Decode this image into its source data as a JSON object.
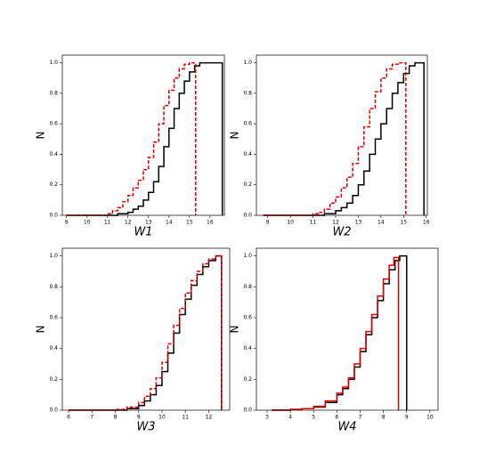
{
  "chart_data": [
    {
      "type": "step",
      "xlabel": "W1",
      "ylabel": "N",
      "xlim": [
        8.8,
        16.7
      ],
      "ylim": [
        0,
        1.05
      ],
      "xticks": [
        9,
        10,
        11,
        12,
        13,
        14,
        15,
        16
      ],
      "yticks": [
        {
          "value": 0,
          "label": "0.0"
        },
        {
          "value": 0.2,
          "label": "0.2"
        },
        {
          "value": 0.4,
          "label": "0.4"
        },
        {
          "value": 0.6,
          "label": "0.6"
        },
        {
          "value": 0.8,
          "label": "0.8"
        },
        {
          "value": 1,
          "label": "1.0"
        }
      ],
      "series": [
        {
          "color": "#000000",
          "dashed": false,
          "x": [
            9,
            10,
            11,
            11.5,
            12,
            12.25,
            12.5,
            12.75,
            13,
            13.25,
            13.5,
            13.75,
            14,
            14.25,
            14.5,
            14.75,
            15,
            15.25,
            15.5,
            16.6
          ],
          "values": [
            0,
            0,
            0,
            0.01,
            0.02,
            0.04,
            0.06,
            0.1,
            0.15,
            0.22,
            0.32,
            0.45,
            0.57,
            0.7,
            0.8,
            0.88,
            0.94,
            0.98,
            1.0,
            0
          ]
        },
        {
          "color": "#dd0000",
          "dashed": true,
          "x": [
            9,
            10,
            11,
            11.25,
            11.5,
            11.75,
            12,
            12.25,
            12.5,
            12.75,
            13,
            13.25,
            13.5,
            13.75,
            14,
            14.25,
            14.5,
            14.75,
            15,
            15.3
          ],
          "values": [
            0,
            0,
            0.01,
            0.03,
            0.05,
            0.09,
            0.13,
            0.18,
            0.23,
            0.3,
            0.38,
            0.48,
            0.6,
            0.72,
            0.82,
            0.9,
            0.96,
            0.99,
            1.0,
            0
          ]
        }
      ]
    },
    {
      "type": "step",
      "xlabel": "W2",
      "ylabel": "N",
      "xlim": [
        8.5,
        16.05
      ],
      "ylim": [
        0,
        1.05
      ],
      "xticks": [
        9,
        10,
        11,
        12,
        13,
        14,
        15,
        16
      ],
      "yticks": [
        {
          "value": 0,
          "label": "0.0"
        },
        {
          "value": 0.2,
          "label": "0.2"
        },
        {
          "value": 0.4,
          "label": "0.4"
        },
        {
          "value": 0.6,
          "label": "0.6"
        },
        {
          "value": 0.8,
          "label": "0.8"
        },
        {
          "value": 1,
          "label": "1.0"
        }
      ],
      "series": [
        {
          "color": "#000000",
          "dashed": false,
          "x": [
            8.8,
            10,
            11,
            11.5,
            12,
            12.25,
            12.5,
            12.75,
            13,
            13.25,
            13.5,
            13.75,
            14,
            14.25,
            14.5,
            14.75,
            15,
            15.25,
            15.5,
            15.9
          ],
          "values": [
            0,
            0,
            0,
            0.01,
            0.03,
            0.05,
            0.08,
            0.13,
            0.2,
            0.29,
            0.4,
            0.5,
            0.6,
            0.7,
            0.8,
            0.87,
            0.93,
            0.98,
            1.0,
            0
          ]
        },
        {
          "color": "#dd0000",
          "dashed": true,
          "x": [
            8.8,
            10,
            11,
            11.25,
            11.5,
            11.75,
            12,
            12.25,
            12.5,
            12.75,
            13,
            13.25,
            13.5,
            13.75,
            14,
            14.25,
            14.5,
            14.75,
            15.1
          ],
          "values": [
            0,
            0,
            0.01,
            0.02,
            0.04,
            0.08,
            0.12,
            0.18,
            0.25,
            0.34,
            0.45,
            0.58,
            0.7,
            0.81,
            0.9,
            0.96,
            0.99,
            1.0,
            0
          ]
        }
      ]
    },
    {
      "type": "step",
      "xlabel": "W3",
      "ylabel": "N",
      "xlim": [
        5.73,
        12.9
      ],
      "ylim": [
        0,
        1.05
      ],
      "xticks": [
        6,
        7,
        8,
        9,
        10,
        11,
        12
      ],
      "yticks": [
        {
          "value": 0,
          "label": "0.0"
        },
        {
          "value": 0.2,
          "label": "0.2"
        },
        {
          "value": 0.4,
          "label": "0.4"
        },
        {
          "value": 0.6,
          "label": "0.6"
        },
        {
          "value": 0.8,
          "label": "0.8"
        },
        {
          "value": 1,
          "label": "1.0"
        }
      ],
      "series": [
        {
          "color": "#000000",
          "dashed": false,
          "x": [
            6,
            7,
            8,
            8.5,
            9,
            9.25,
            9.5,
            9.75,
            10,
            10.25,
            10.5,
            10.75,
            11,
            11.25,
            11.5,
            11.75,
            12,
            12.3,
            12.55
          ],
          "values": [
            0,
            0,
            0,
            0.01,
            0.03,
            0.06,
            0.1,
            0.16,
            0.25,
            0.37,
            0.5,
            0.62,
            0.72,
            0.81,
            0.88,
            0.93,
            0.97,
            1.0,
            0
          ]
        },
        {
          "color": "#dd0000",
          "dashed": true,
          "x": [
            6,
            7,
            8,
            8.5,
            9,
            9.25,
            9.5,
            9.75,
            10,
            10.25,
            10.5,
            10.75,
            11,
            11.25,
            11.5,
            11.75,
            12,
            12.3,
            12.55
          ],
          "values": [
            0,
            0,
            0.005,
            0.02,
            0.05,
            0.09,
            0.14,
            0.21,
            0.31,
            0.43,
            0.55,
            0.66,
            0.76,
            0.84,
            0.9,
            0.95,
            0.98,
            1.0,
            0
          ]
        }
      ]
    },
    {
      "type": "step",
      "xlabel": "W4",
      "ylabel": "N",
      "xlim": [
        2.54,
        10.35
      ],
      "ylim": [
        0,
        1.05
      ],
      "xticks": [
        3,
        4,
        5,
        6,
        7,
        8,
        9,
        10
      ],
      "yticks": [
        {
          "value": 0,
          "label": "0.0"
        },
        {
          "value": 0.2,
          "label": "0.2"
        },
        {
          "value": 0.4,
          "label": "0.4"
        },
        {
          "value": 0.6,
          "label": "0.6"
        },
        {
          "value": 0.8,
          "label": "0.8"
        },
        {
          "value": 1,
          "label": "1.0"
        }
      ],
      "series": [
        {
          "color": "#000000",
          "dashed": false,
          "x": [
            3.2,
            4,
            4.5,
            5,
            5.5,
            6,
            6.25,
            6.5,
            6.75,
            7,
            7.25,
            7.5,
            7.75,
            8,
            8.25,
            8.5,
            8.7,
            9.0
          ],
          "values": [
            0,
            0.005,
            0.01,
            0.02,
            0.05,
            0.1,
            0.14,
            0.2,
            0.28,
            0.38,
            0.49,
            0.6,
            0.71,
            0.82,
            0.91,
            0.97,
            1.0,
            0
          ]
        },
        {
          "color": "#dd0000",
          "dashed": false,
          "x": [
            3.2,
            4,
            4.5,
            5,
            5.5,
            6,
            6.25,
            6.5,
            6.75,
            7,
            7.25,
            7.5,
            7.75,
            8,
            8.25,
            8.45,
            8.65
          ],
          "values": [
            0,
            0.005,
            0.01,
            0.025,
            0.06,
            0.11,
            0.15,
            0.21,
            0.3,
            0.4,
            0.51,
            0.62,
            0.74,
            0.85,
            0.94,
            0.99,
            0
          ]
        }
      ]
    }
  ]
}
